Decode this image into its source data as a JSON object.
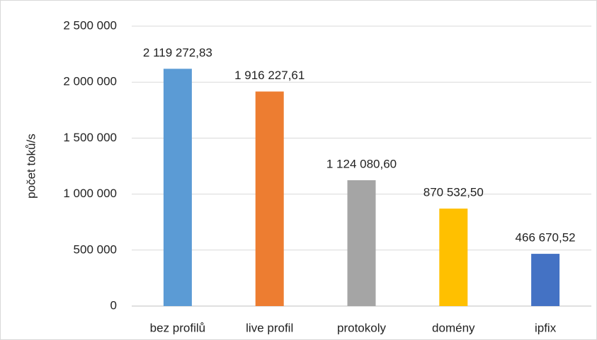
{
  "chart_data": {
    "type": "bar",
    "y_label": "počet toků/s",
    "categories": [
      "bez profilů",
      "live profil",
      "protokoly",
      "domény",
      "ipfix"
    ],
    "values": [
      2119272.83,
      1916227.61,
      1124080.6,
      870532.5,
      466670.52
    ],
    "value_labels": [
      "2 119 272,83",
      "1 916 227,61",
      "1 124 080,60",
      "870 532,50",
      "466 670,52"
    ],
    "colors": [
      "#5b9bd5",
      "#ed7d31",
      "#a5a5a5",
      "#ffc000",
      "#4472c4"
    ],
    "ylim": [
      0,
      2500000
    ],
    "yticks": [
      0,
      {
        "value": 500000,
        "label": "500 000"
      },
      {
        "value": 1000000,
        "label": "1 000 000"
      },
      {
        "value": 1500000,
        "label": "1 500 000"
      },
      {
        "value": 2000000,
        "label": "2 000 000"
      },
      {
        "value": 2500000,
        "label": "2 500 000"
      }
    ],
    "grid": true
  }
}
